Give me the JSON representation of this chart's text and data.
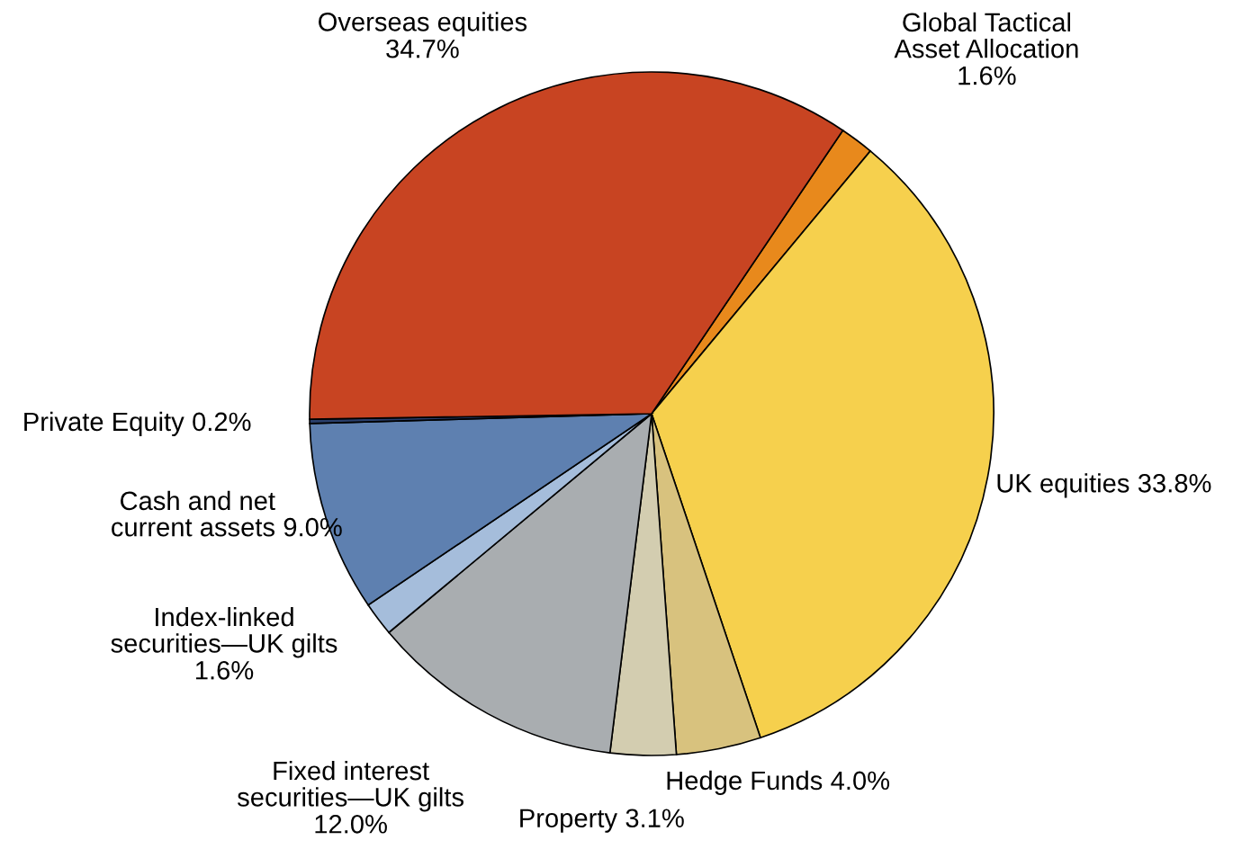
{
  "chart_data": {
    "type": "pie",
    "categories": [
      "Global Tactical\nAsset Allocation",
      "UK equities",
      "Hedge Funds",
      "Property",
      "Fixed interest\nsecurities—UK gilts",
      "Index-linked\nsecurities—UK gilts",
      "Cash and net\ncurrent assets",
      "Private Equity",
      "Overseas equities"
    ],
    "values": [
      1.6,
      33.8,
      4.0,
      3.1,
      12.0,
      1.6,
      9.0,
      0.2,
      34.7
    ],
    "colors": [
      "#e8891c",
      "#f6d04d",
      "#d8c27e",
      "#d3cdb0",
      "#a9adb0",
      "#a5bddb",
      "#5e80b0",
      "#2a3f6b",
      "#c84422"
    ],
    "value_labels": [
      "1.6%",
      "33.8%",
      "4.0%",
      "3.1%",
      "12.0%",
      "1.6%",
      "9.0%",
      "0.2%",
      "34.7%"
    ]
  }
}
